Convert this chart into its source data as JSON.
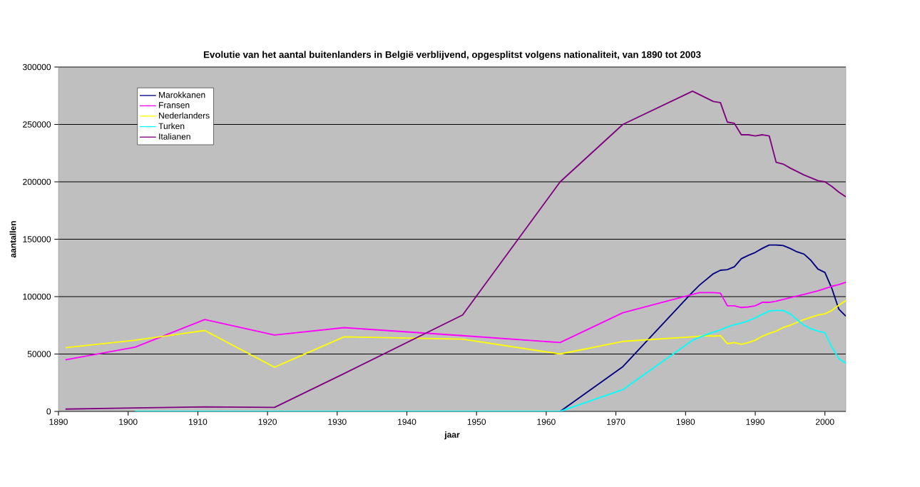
{
  "chart_data": {
    "type": "line",
    "title": "Evolutie van het aantal buitenlanders in België verblijvend, opgesplitst volgens nationaliteit, van 1890 tot 2003",
    "xlabel": "jaar",
    "ylabel": "aantallen",
    "x": [
      1891,
      1901,
      1911,
      1921,
      1931,
      1948,
      1962,
      1971,
      1981,
      1982,
      1983,
      1984,
      1985,
      1986,
      1987,
      1988,
      1989,
      1990,
      1991,
      1992,
      1993,
      1994,
      1995,
      1996,
      1997,
      1998,
      1999,
      2000,
      2001,
      2002,
      2003
    ],
    "series": [
      {
        "name": "Marokkanen",
        "color": "#000080",
        "values": [
          null,
          null,
          null,
          null,
          null,
          null,
          0,
          39000,
          104000,
          110000,
          115000,
          120000,
          123000,
          123500,
          126000,
          133000,
          136000,
          138500,
          142000,
          145000,
          145000,
          144500,
          142000,
          139000,
          137000,
          131500,
          124000,
          121000,
          107000,
          89000,
          83000
        ]
      },
      {
        "name": "Fransen",
        "color": "#ff00ff",
        "values": [
          45000,
          56000,
          80000,
          66500,
          73000,
          66000,
          60000,
          86000,
          102000,
          103500,
          103500,
          103500,
          103000,
          92000,
          92000,
          90500,
          91000,
          92000,
          95000,
          95000,
          96000,
          97500,
          99000,
          100500,
          102000,
          103500,
          105000,
          107000,
          109000,
          110500,
          112500
        ]
      },
      {
        "name": "Nederlanders",
        "color": "#ffff00",
        "values": [
          55500,
          62000,
          70500,
          38500,
          65000,
          63000,
          50000,
          61000,
          65000,
          65500,
          66000,
          65500,
          66000,
          59000,
          60000,
          58500,
          60000,
          62000,
          65500,
          68000,
          70000,
          73000,
          75000,
          77500,
          80000,
          82000,
          84000,
          85000,
          88000,
          92500,
          96500
        ]
      },
      {
        "name": "Turken",
        "color": "#00ffff",
        "values": [
          null,
          0,
          0,
          0,
          0,
          0,
          0,
          19000,
          62000,
          64500,
          67000,
          69000,
          71000,
          73500,
          75500,
          77000,
          79000,
          81500,
          84500,
          87500,
          88000,
          88000,
          85000,
          80000,
          75000,
          72000,
          70000,
          68500,
          56000,
          46000,
          42000
        ]
      },
      {
        "name": "Italianen",
        "color": "#800080",
        "values": [
          2000,
          3000,
          4000,
          3500,
          33000,
          84000,
          200000,
          250000,
          279000,
          276000,
          273000,
          270000,
          269000,
          252000,
          251000,
          241000,
          241000,
          240000,
          241000,
          240000,
          217000,
          215500,
          212000,
          209000,
          206000,
          203500,
          201000,
          200000,
          196000,
          191000,
          187000
        ]
      }
    ],
    "xlim": [
      1890,
      2003
    ],
    "ylim": [
      0,
      300000
    ],
    "xticks": [
      1890,
      1900,
      1910,
      1920,
      1930,
      1940,
      1950,
      1960,
      1970,
      1980,
      1990,
      2000
    ],
    "yticks": [
      0,
      50000,
      100000,
      150000,
      200000,
      250000,
      300000
    ],
    "grid": "y",
    "legend": "top left",
    "marker": "none",
    "line_style": "solid"
  }
}
